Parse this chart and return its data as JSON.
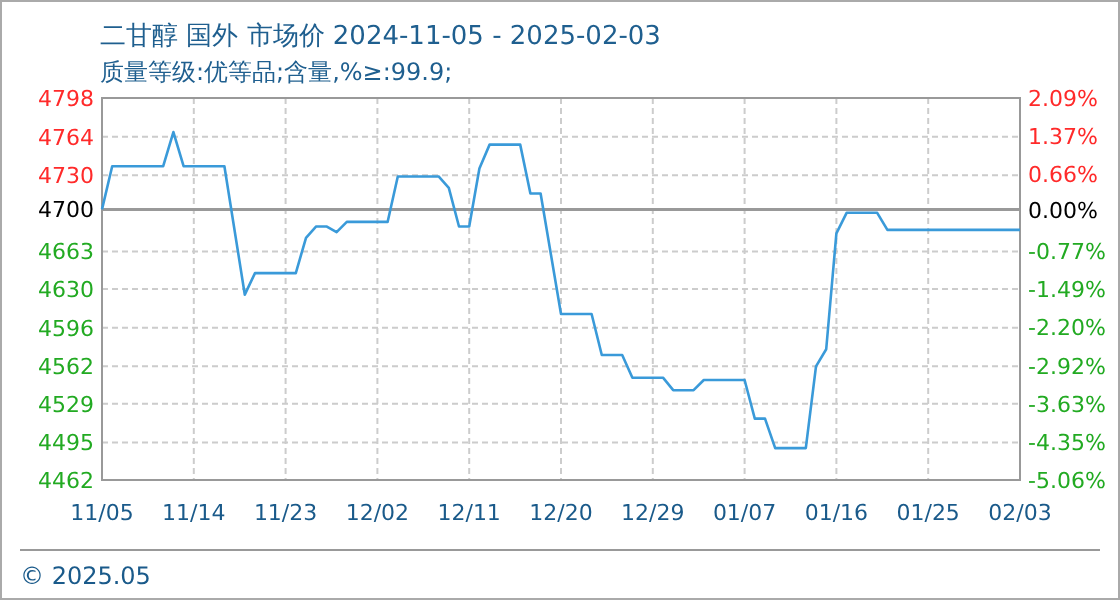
{
  "chart_data": {
    "type": "line",
    "title": "二甘醇 国外 市场价 2024-11-05 - 2025-02-03",
    "subtitle": "质量等级:优等品;含量,%≥:99.9;",
    "x": [
      "2024-11-05",
      "2024-11-06",
      "2024-11-11",
      "2024-11-12",
      "2024-11-13",
      "2024-11-17",
      "2024-11-19",
      "2024-11-20",
      "2024-11-24",
      "2024-11-25",
      "2024-11-26",
      "2024-11-27",
      "2024-11-28",
      "2024-11-29",
      "2024-12-03",
      "2024-12-04",
      "2024-12-08",
      "2024-12-09",
      "2024-12-10",
      "2024-12-11",
      "2024-12-12",
      "2024-12-13",
      "2024-12-16",
      "2024-12-17",
      "2024-12-18",
      "2024-12-20",
      "2024-12-23",
      "2024-12-24",
      "2024-12-26",
      "2024-12-27",
      "2024-12-30",
      "2024-12-31",
      "2025-01-02",
      "2025-01-03",
      "2025-01-07",
      "2025-01-08",
      "2025-01-09",
      "2025-01-10",
      "2025-01-13",
      "2025-01-14",
      "2025-01-15",
      "2025-01-16",
      "2025-01-17",
      "2025-01-20",
      "2025-01-21",
      "2025-02-03"
    ],
    "series": [
      {
        "color": "#3a9ad9",
        "values": [
          4700,
          4738,
          4738,
          4768,
          4738,
          4738,
          4625,
          4644,
          4644,
          4675,
          4685,
          4685,
          4680,
          4689,
          4689,
          4729,
          4729,
          4719,
          4685,
          4685,
          4736,
          4757,
          4757,
          4714,
          4714,
          4608,
          4608,
          4572,
          4572,
          4552,
          4552,
          4541,
          4541,
          4550,
          4550,
          4516,
          4516,
          4490,
          4490,
          4562,
          4577,
          4679,
          4697,
          4697,
          4682,
          4682
        ]
      }
    ],
    "xlim": [
      "2024-11-05",
      "2025-02-03"
    ],
    "xticks": [
      {
        "value": "2024-11-05",
        "label": "11/05"
      },
      {
        "value": "2024-11-14",
        "label": "11/14"
      },
      {
        "value": "2024-11-23",
        "label": "11/23"
      },
      {
        "value": "2024-12-02",
        "label": "12/02"
      },
      {
        "value": "2024-12-11",
        "label": "12/11"
      },
      {
        "value": "2024-12-20",
        "label": "12/20"
      },
      {
        "value": "2024-12-29",
        "label": "12/29"
      },
      {
        "value": "2025-01-07",
        "label": "01/07"
      },
      {
        "value": "2025-01-16",
        "label": "01/16"
      },
      {
        "value": "2025-01-25",
        "label": "01/25"
      },
      {
        "value": "2025-02-03",
        "label": "02/03"
      }
    ],
    "ylim": [
      4462,
      4798
    ],
    "yticks": [
      4798,
      4764,
      4730,
      4700,
      4663,
      4630,
      4596,
      4562,
      4529,
      4495,
      4462
    ],
    "y2lim": [
      -5.06,
      2.09
    ],
    "y2ticks": [
      {
        "value": 2.09,
        "label": "2.09%"
      },
      {
        "value": 1.37,
        "label": "1.37%"
      },
      {
        "value": 0.66,
        "label": "0.66%"
      },
      {
        "value": 0,
        "label": "0.00%"
      },
      {
        "value": -0.77,
        "label": "-0.77%"
      },
      {
        "value": -1.49,
        "label": "-1.49%"
      },
      {
        "value": -2.2,
        "label": "-2.20%"
      },
      {
        "value": -2.92,
        "label": "-2.92%"
      },
      {
        "value": -3.63,
        "label": "-3.63%"
      },
      {
        "value": -4.35,
        "label": "-4.35%"
      },
      {
        "value": -5.06,
        "label": "-5.06%"
      }
    ],
    "grid": true,
    "ref_lines": [
      {
        "axis": "y",
        "value": 4700,
        "color": "#999999"
      }
    ],
    "annotations": [
      "© 2025.05"
    ]
  }
}
